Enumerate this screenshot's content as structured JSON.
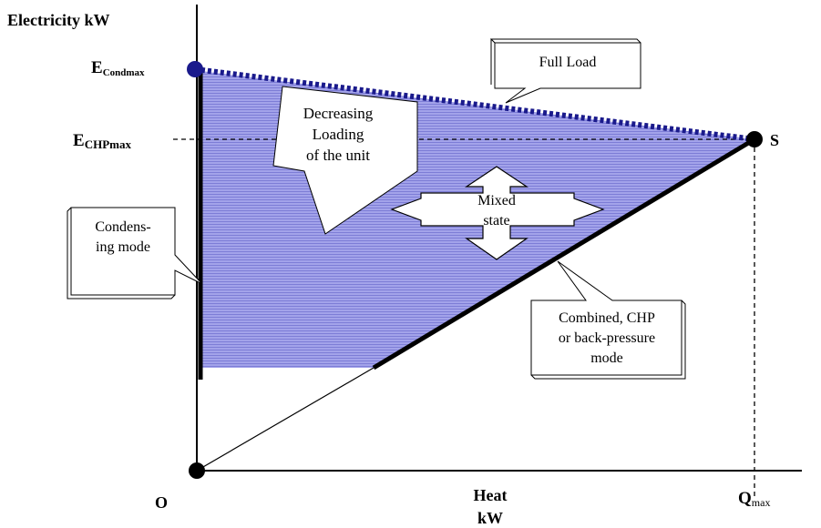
{
  "axes": {
    "y_label": "Electricity kW",
    "x_label_line1": "Heat",
    "x_label_line2": "kW",
    "origin_label": "O"
  },
  "levels": {
    "e_cond_main": "E",
    "e_cond_sub": "Condmax",
    "e_chp_main": "E",
    "e_chp_sub": "CHPmax",
    "q_main": "Q",
    "q_sub": "max",
    "s_label": "S"
  },
  "callouts": {
    "full_load": "Full Load",
    "decreasing": [
      "Decreasing",
      "Loading",
      "of the unit"
    ],
    "mixed": [
      "Mixed",
      "state"
    ],
    "condensing": [
      "Condens-",
      "ing mode"
    ],
    "combined": [
      "Combined, CHP",
      "or back-pressure",
      "mode"
    ]
  },
  "colors": {
    "region_fill": "#9b9be6",
    "full_load_line": "#1a1a8c",
    "axis": "#000000",
    "point": "#000000",
    "top_point": "#1a1a8c"
  }
}
